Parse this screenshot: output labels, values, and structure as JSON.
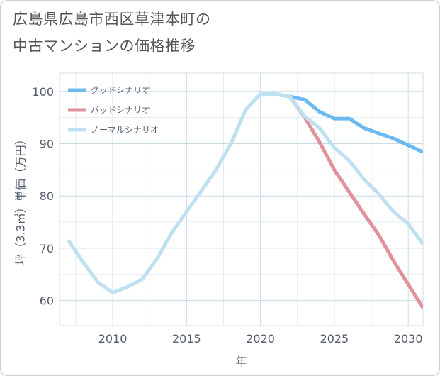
{
  "chart_data": {
    "type": "line",
    "title_lines": [
      "広島県広島市西区草津本町の",
      "中古マンションの価格推移"
    ],
    "xlabel": "年",
    "ylabel": "坪（3.3㎡）単価（万円）",
    "xlim": [
      2006.4,
      2031
    ],
    "ylim": [
      55.2,
      103.5
    ],
    "xticks": [
      2010,
      2015,
      2020,
      2025,
      2030
    ],
    "yticks": [
      60,
      70,
      80,
      90,
      100
    ],
    "grid": true,
    "legend_position": "top-left",
    "series": [
      {
        "name": "グッドシナリオ",
        "color": "#6cb9ef",
        "x": [
          2020,
          2021,
          2022,
          2023,
          2024,
          2025,
          2026,
          2027,
          2028,
          2029,
          2030,
          2031
        ],
        "y": [
          99.5,
          99.5,
          99.0,
          98.4,
          96.1,
          94.8,
          94.8,
          93.0,
          92.0,
          91.0,
          89.7,
          88.4
        ]
      },
      {
        "name": "バッドシナリオ",
        "color": "#e0929d",
        "x": [
          2020,
          2021,
          2022,
          2023,
          2024,
          2025,
          2026,
          2027,
          2028,
          2029,
          2030,
          2031
        ],
        "y": [
          99.5,
          99.5,
          99.0,
          95.0,
          90.3,
          85.0,
          80.8,
          76.6,
          72.6,
          67.6,
          63.1,
          58.6
        ]
      },
      {
        "name": "ノーマルシナリオ",
        "color": "#bfe0f0",
        "x": [
          2007,
          2008,
          2009,
          2010,
          2011,
          2012,
          2013,
          2014,
          2015,
          2016,
          2017,
          2018,
          2019,
          2020,
          2021,
          2022,
          2023,
          2024,
          2025,
          2026,
          2027,
          2028,
          2029,
          2030,
          2031
        ],
        "y": [
          71.5,
          67.3,
          63.5,
          61.5,
          62.6,
          64.1,
          68.0,
          73.0,
          77.0,
          81.0,
          85.0,
          90.0,
          96.5,
          99.5,
          99.5,
          99.0,
          95.2,
          93.0,
          89.2,
          86.8,
          83.2,
          80.4,
          77.0,
          74.7,
          70.8
        ]
      }
    ]
  }
}
